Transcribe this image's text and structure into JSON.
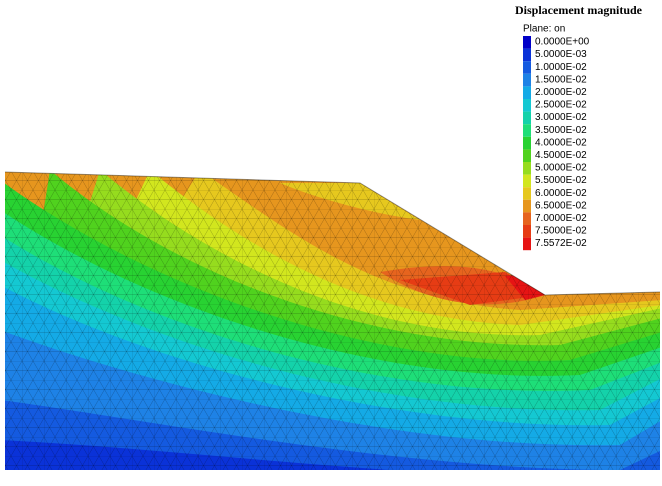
{
  "legend": {
    "title": "Displacement magnitude",
    "subtitle": "Plane: on",
    "entries": [
      {
        "label": "0.0000E+00",
        "color": "#0000c8"
      },
      {
        "label": "5.0000E-03",
        "color": "#0a32d8"
      },
      {
        "label": "1.0000E-02",
        "color": "#145ae0"
      },
      {
        "label": "1.5000E-02",
        "color": "#1e82e6"
      },
      {
        "label": "2.0000E-02",
        "color": "#14aae6"
      },
      {
        "label": "2.5000E-02",
        "color": "#14c8d2"
      },
      {
        "label": "3.0000E-02",
        "color": "#14d2aa"
      },
      {
        "label": "3.5000E-02",
        "color": "#1ede78"
      },
      {
        "label": "4.0000E-02",
        "color": "#28d232"
      },
      {
        "label": "4.5000E-02",
        "color": "#50d21e"
      },
      {
        "label": "5.0000E-02",
        "color": "#96dc1e"
      },
      {
        "label": "5.5000E-02",
        "color": "#d2e61e"
      },
      {
        "label": "6.0000E-02",
        "color": "#e6c81e"
      },
      {
        "label": "6.5000E-02",
        "color": "#e6961e"
      },
      {
        "label": "7.0000E-02",
        "color": "#e6641e"
      },
      {
        "label": "7.5000E-02",
        "color": "#e63c14"
      },
      {
        "label": "7.5572E-02",
        "color": "#e61414"
      }
    ]
  }
}
